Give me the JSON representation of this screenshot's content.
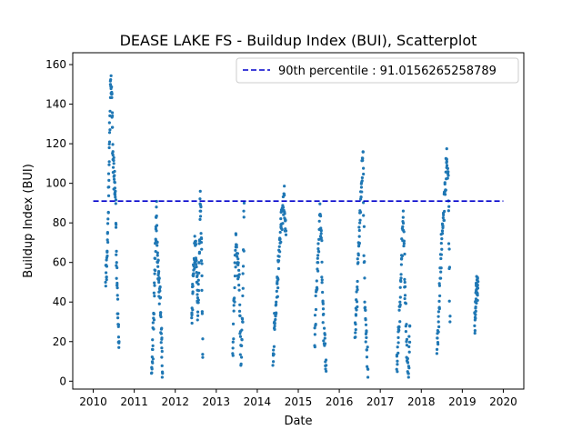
{
  "chart_data": {
    "type": "scatter",
    "title": "DEASE LAKE FS - Buildup Index (BUI), Scatterplot",
    "xlabel": "Date",
    "ylabel": "Buildup Index (BUI)",
    "xlim": [
      2009.5,
      2020.5
    ],
    "ylim": [
      -4,
      166
    ],
    "x_ticks": [
      2010,
      2011,
      2012,
      2013,
      2014,
      2015,
      2016,
      2017,
      2018,
      2019,
      2020
    ],
    "y_ticks": [
      0,
      20,
      40,
      60,
      80,
      100,
      120,
      140,
      160
    ],
    "grid": false,
    "legend_placement": "top-right",
    "reference_line": {
      "label": "90th percentile : 91.0156265258789",
      "value": 91.0156265258789,
      "x_range": [
        2010,
        2020
      ],
      "color": "#0000cc",
      "style": "dashed"
    },
    "series": [
      {
        "color": "#1f77b4",
        "seasons": [
          {
            "year": 2010,
            "x": [
              2010.3,
              2010.33,
              2010.36,
              2010.39,
              2010.42,
              2010.45,
              2010.48,
              2010.51,
              2010.54,
              2010.57,
              2010.6,
              2010.63
            ],
            "y": [
              50,
              58,
              82,
              118,
              150,
              146,
              112,
              102,
              96,
              60,
              32,
              20
            ]
          },
          {
            "year": 2011,
            "x": [
              2011.42,
              2011.45,
              2011.48,
              2011.51,
              2011.54,
              2011.57,
              2011.6,
              2011.63,
              2011.66,
              2011.69
            ],
            "y": [
              4,
              16,
              34,
              62,
              88,
              60,
              50,
              42,
              24,
              4
            ]
          },
          {
            "year": 2012,
            "x": [
              2012.4,
              2012.43,
              2012.46,
              2012.49,
              2012.52,
              2012.55,
              2012.58,
              2012.61,
              2012.64,
              2012.67
            ],
            "y": [
              32,
              48,
              62,
              70,
              55,
              35,
              60,
              96,
              72,
              12
            ]
          },
          {
            "year": 2013,
            "x": [
              2013.4,
              2013.44,
              2013.48,
              2013.52,
              2013.56,
              2013.6,
              2013.64,
              2013.68
            ],
            "y": [
              14,
              42,
              74,
              60,
              46,
              8,
              30,
              90
            ]
          },
          {
            "year": 2014,
            "x": [
              2014.38,
              2014.42,
              2014.46,
              2014.5,
              2014.54,
              2014.58,
              2014.62,
              2014.66,
              2014.7
            ],
            "y": [
              8,
              30,
              40,
              52,
              68,
              78,
              86,
              94,
              74
            ]
          },
          {
            "year": 2015,
            "x": [
              2015.4,
              2015.44,
              2015.48,
              2015.52,
              2015.56,
              2015.6,
              2015.64,
              2015.68
            ],
            "y": [
              18,
              46,
              60,
              84,
              76,
              40,
              18,
              8
            ]
          },
          {
            "year": 2016,
            "x": [
              2016.38,
              2016.42,
              2016.46,
              2016.5,
              2016.54,
              2016.58,
              2016.62,
              2016.66,
              2016.7
            ],
            "y": [
              22,
              36,
              60,
              80,
              98,
              116,
              40,
              22,
              6
            ]
          },
          {
            "year": 2017,
            "x": [
              2017.4,
              2017.44,
              2017.48,
              2017.52,
              2017.56,
              2017.6,
              2017.64,
              2017.68,
              2017.72
            ],
            "y": [
              6,
              22,
              40,
              62,
              86,
              50,
              20,
              4,
              28
            ]
          },
          {
            "year": 2018,
            "x": [
              2018.38,
              2018.42,
              2018.46,
              2018.5,
              2018.54,
              2018.58,
              2018.62,
              2018.66,
              2018.7
            ],
            "y": [
              14,
              30,
              52,
              72,
              84,
              96,
              112,
              104,
              30
            ]
          },
          {
            "year": 2019,
            "x": [
              2019.3,
              2019.32,
              2019.34,
              2019.36,
              2019.38
            ],
            "y": [
              28,
              40,
              46,
              48,
              47
            ]
          }
        ]
      }
    ]
  }
}
